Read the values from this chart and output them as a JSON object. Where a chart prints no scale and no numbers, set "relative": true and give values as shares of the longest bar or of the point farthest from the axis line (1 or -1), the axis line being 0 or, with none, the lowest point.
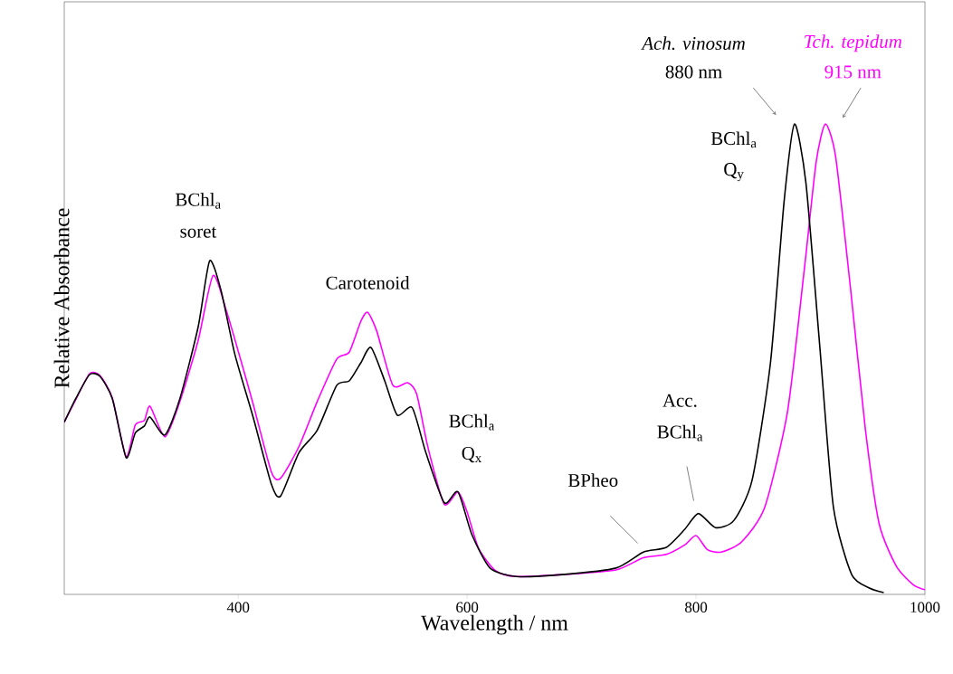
{
  "chart_data": {
    "type": "line",
    "relative": true,
    "xlabel": "Wavelength / nm",
    "ylabel": "Relative Absorbance",
    "xlim": [
      248,
      1000
    ],
    "xticks": [
      400,
      600,
      800,
      1000
    ],
    "grid": false,
    "marker": "none",
    "line_style": "solid",
    "series": [
      {
        "name": "*Ach. vinosum*",
        "color": "#000000",
        "x": [
          248,
          258,
          270,
          279,
          290,
          302,
          310,
          318,
          323,
          336,
          349,
          365,
          375,
          385,
          397,
          413,
          429,
          437,
          453,
          469,
          486,
          497,
          507,
          516,
          528,
          539,
          552,
          564,
          580,
          592,
          604,
          620,
          643,
          683,
          730,
          754,
          774,
          790,
          802,
          817,
          833,
          849,
          865,
          877,
          886,
          896,
          908,
          920,
          936,
          952,
          964
        ],
        "values": [
          0.366,
          0.416,
          0.467,
          0.464,
          0.416,
          0.291,
          0.343,
          0.358,
          0.377,
          0.339,
          0.416,
          0.569,
          0.709,
          0.646,
          0.511,
          0.377,
          0.234,
          0.209,
          0.301,
          0.349,
          0.444,
          0.454,
          0.492,
          0.525,
          0.454,
          0.381,
          0.397,
          0.301,
          0.195,
          0.218,
          0.128,
          0.056,
          0.038,
          0.042,
          0.056,
          0.09,
          0.1,
          0.138,
          0.172,
          0.142,
          0.157,
          0.243,
          0.492,
          0.837,
          1.0,
          0.875,
          0.531,
          0.186,
          0.042,
          0.013,
          0.004
        ]
      },
      {
        "name": "*Tch. tepidum*",
        "color": "#ff00ff",
        "x": [
          248,
          258,
          270,
          279,
          290,
          302,
          310,
          318,
          323,
          336,
          349,
          365,
          378,
          390,
          402,
          413,
          429,
          437,
          453,
          469,
          486,
          497,
          507,
          513,
          521,
          535,
          548,
          556,
          566,
          580,
          592,
          600,
          610,
          625,
          643,
          683,
          730,
          754,
          774,
          790,
          800,
          810,
          822,
          840,
          860,
          880,
          895,
          905,
          913,
          922,
          935,
          948,
          960,
          975,
          990,
          1000
        ],
        "values": [
          0.366,
          0.414,
          0.469,
          0.466,
          0.418,
          0.293,
          0.36,
          0.37,
          0.4,
          0.335,
          0.41,
          0.54,
          0.678,
          0.6,
          0.5,
          0.405,
          0.26,
          0.247,
          0.314,
          0.41,
          0.5,
          0.515,
          0.58,
          0.6,
          0.56,
          0.445,
          0.45,
          0.425,
          0.31,
          0.192,
          0.218,
          0.175,
          0.098,
          0.05,
          0.038,
          0.042,
          0.052,
          0.078,
          0.085,
          0.105,
          0.125,
          0.095,
          0.09,
          0.112,
          0.185,
          0.39,
          0.7,
          0.92,
          1.0,
          0.93,
          0.65,
          0.35,
          0.15,
          0.06,
          0.02,
          0.01
        ]
      }
    ],
    "annotations": [
      "BChl$_{a}$",
      "soret",
      "Carotenoid",
      "BChl$_{a}$",
      "Q$_{x}$",
      "BPheo",
      "Acc.",
      "BChl$_{a}$",
      "BChl$_{a}$",
      "Q$_{y}$",
      "880 nm",
      "915 nm"
    ]
  }
}
